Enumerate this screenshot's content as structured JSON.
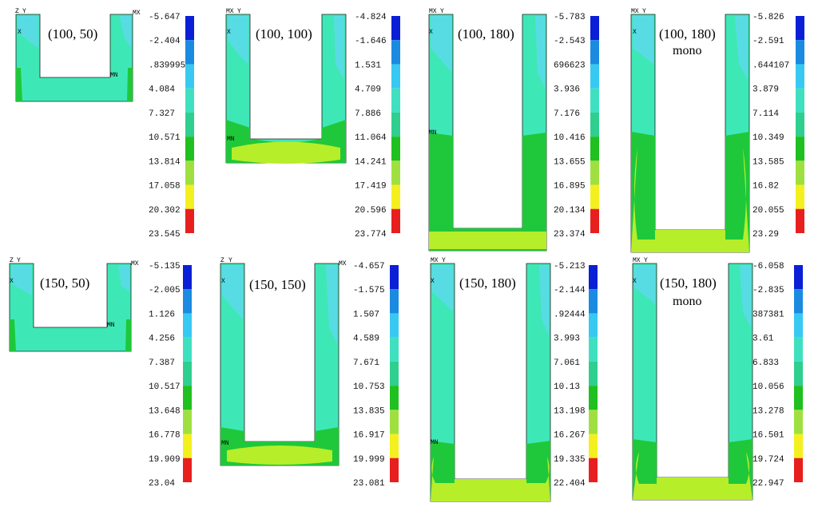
{
  "colors": {
    "band": [
      "#0a1fd6",
      "#1a8be0",
      "#38c9f2",
      "#3fe0c0",
      "#2ecf8f",
      "#20c020",
      "#9fe040",
      "#f4f020",
      "#f0a020",
      "#e81f1f"
    ],
    "body_main": "#3ee8b6",
    "body_cyan": "#5fd8f0",
    "body_green": "#1fc83a",
    "body_yellowgreen": "#b6ee2a",
    "outline": "#202020"
  },
  "markers": {
    "max": "MX",
    "min": "MN",
    "x": "X",
    "y": "Y",
    "z": "Z"
  },
  "panels": [
    {
      "label": "(100, 50)",
      "sub": "",
      "ticks": [
        "-5.647",
        "-2.404",
        ".839995",
        "4.084",
        "7.327",
        "10.571",
        "13.814",
        "17.058",
        "20.302",
        "23.545"
      ]
    },
    {
      "label": "(100, 100)",
      "sub": "",
      "ticks": [
        "-4.824",
        "-1.646",
        "1.531",
        "4.709",
        "7.886",
        "11.064",
        "14.241",
        "17.419",
        "20.596",
        "23.774"
      ]
    },
    {
      "label": "(100, 180)",
      "sub": "",
      "ticks": [
        "-5.783",
        "-2.543",
        "696623",
        "3.936",
        "7.176",
        "10.416",
        "13.655",
        "16.895",
        "20.134",
        "23.374"
      ]
    },
    {
      "label": "(100, 180)",
      "sub": "mono",
      "ticks": [
        "-5.826",
        "-2.591",
        ".644107",
        "3.879",
        "7.114",
        "10.349",
        "13.585",
        "16.82",
        "20.055",
        "23.29"
      ]
    },
    {
      "label": "(150, 50)",
      "sub": "",
      "ticks": [
        "-5.135",
        "-2.005",
        "1.126",
        "4.256",
        "7.387",
        "10.517",
        "13.648",
        "16.778",
        "19.909",
        "23.04"
      ]
    },
    {
      "label": "(150, 150)",
      "sub": "",
      "ticks": [
        "-4.657",
        "-1.575",
        "1.507",
        "4.589",
        "7.671",
        "10.753",
        "13.835",
        "16.917",
        "19.999",
        "23.081"
      ]
    },
    {
      "label": "(150, 180)",
      "sub": "",
      "ticks": [
        "-5.213",
        "-2.144",
        ".92444",
        "3.993",
        "7.061",
        "10.13",
        "13.198",
        "16.267",
        "19.335",
        "22.404"
      ]
    },
    {
      "label": "(150, 180)",
      "sub": "mono",
      "ticks": [
        "-6.058",
        "-2.835",
        "387381",
        "3.61",
        "6.833",
        "10.056",
        "13.278",
        "16.501",
        "19.724",
        "22.947"
      ]
    }
  ]
}
